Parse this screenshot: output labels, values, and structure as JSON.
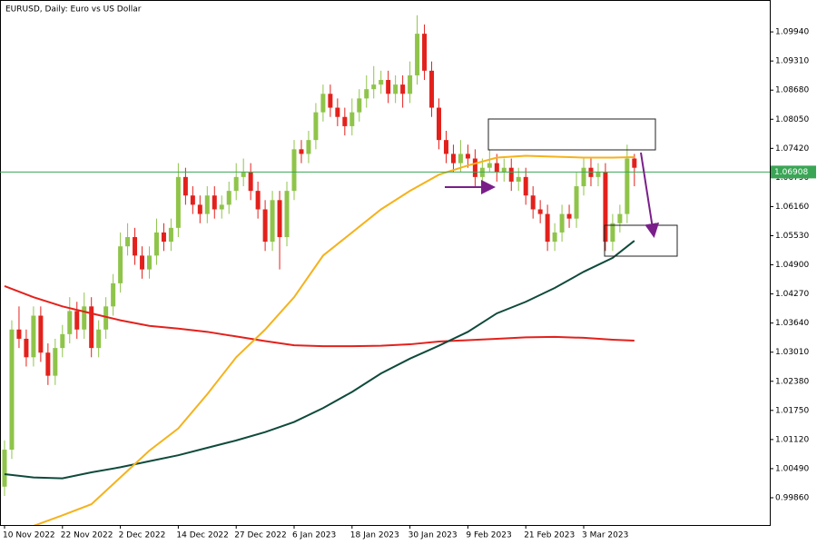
{
  "chart_data": {
    "type": "candlestick",
    "title": "EURUSD, Daily:  Euro vs US Dollar",
    "ylim": [
      0.9927,
      1.1063
    ],
    "xlim": [
      0,
      87
    ],
    "yticks": [
      {
        "value": 1.0994,
        "label": "1.09940"
      },
      {
        "value": 1.0931,
        "label": "1.09310"
      },
      {
        "value": 1.0868,
        "label": "1.08680"
      },
      {
        "value": 1.0805,
        "label": "1.08050"
      },
      {
        "value": 1.0742,
        "label": "1.07420"
      },
      {
        "value": 1.0679,
        "label": "1.06790"
      },
      {
        "value": 1.0616,
        "label": "1.06160"
      },
      {
        "value": 1.0553,
        "label": "1.05530"
      },
      {
        "value": 1.049,
        "label": "1.04900"
      },
      {
        "value": 1.0427,
        "label": "1.04270"
      },
      {
        "value": 1.0364,
        "label": "1.03640"
      },
      {
        "value": 1.0301,
        "label": "1.03010"
      },
      {
        "value": 1.0238,
        "label": "1.02380"
      },
      {
        "value": 1.0175,
        "label": "1.01750"
      },
      {
        "value": 1.0112,
        "label": "1.01120"
      },
      {
        "value": 1.0049,
        "label": "1.00490"
      },
      {
        "value": 0.9986,
        "label": "0.99860"
      }
    ],
    "xticks": [
      {
        "value": 0,
        "label": "10 Nov 2022"
      },
      {
        "value": 8,
        "label": "22 Nov 2022"
      },
      {
        "value": 16,
        "label": "2 Dec 2022"
      },
      {
        "value": 24,
        "label": "14 Dec 2022"
      },
      {
        "value": 32,
        "label": "27 Dec 2022"
      },
      {
        "value": 40,
        "label": "6 Jan 2023"
      },
      {
        "value": 48,
        "label": "18 Jan 2023"
      },
      {
        "value": 56,
        "label": "30 Jan 2023"
      },
      {
        "value": 64,
        "label": "9 Feb 2023"
      },
      {
        "value": 72,
        "label": "21 Feb 2023"
      },
      {
        "value": 80,
        "label": "3 Mar 2023"
      }
    ],
    "up_color": "#8fc44a",
    "down_color": "#e3211c",
    "current_price": {
      "value": 1.06908,
      "label": "1.06908",
      "color": "#3aa655"
    },
    "candles": [
      [
        1.001,
        1.011,
        0.999,
        1.009
      ],
      [
        1.009,
        1.037,
        1.007,
        1.035
      ],
      [
        1.035,
        1.04,
        1.031,
        1.033
      ],
      [
        1.033,
        1.035,
        1.027,
        1.029
      ],
      [
        1.029,
        1.04,
        1.027,
        1.038
      ],
      [
        1.038,
        1.04,
        1.028,
        1.03
      ],
      [
        1.03,
        1.032,
        1.023,
        1.025
      ],
      [
        1.025,
        1.033,
        1.023,
        1.031
      ],
      [
        1.031,
        1.036,
        1.029,
        1.034
      ],
      [
        1.034,
        1.042,
        1.032,
        1.039
      ],
      [
        1.039,
        1.041,
        1.033,
        1.035
      ],
      [
        1.035,
        1.043,
        1.033,
        1.04
      ],
      [
        1.04,
        1.042,
        1.029,
        1.031
      ],
      [
        1.031,
        1.037,
        1.029,
        1.035
      ],
      [
        1.035,
        1.042,
        1.033,
        1.04
      ],
      [
        1.04,
        1.047,
        1.038,
        1.045
      ],
      [
        1.045,
        1.056,
        1.043,
        1.053
      ],
      [
        1.053,
        1.058,
        1.051,
        1.055
      ],
      [
        1.055,
        1.057,
        1.049,
        1.051
      ],
      [
        1.051,
        1.053,
        1.046,
        1.048
      ],
      [
        1.048,
        1.053,
        1.046,
        1.051
      ],
      [
        1.051,
        1.059,
        1.049,
        1.056
      ],
      [
        1.056,
        1.058,
        1.052,
        1.054
      ],
      [
        1.054,
        1.059,
        1.052,
        1.057
      ],
      [
        1.057,
        1.071,
        1.055,
        1.068
      ],
      [
        1.068,
        1.07,
        1.062,
        1.064
      ],
      [
        1.064,
        1.066,
        1.06,
        1.062
      ],
      [
        1.062,
        1.064,
        1.058,
        1.06
      ],
      [
        1.06,
        1.066,
        1.058,
        1.064
      ],
      [
        1.064,
        1.066,
        1.059,
        1.061
      ],
      [
        1.061,
        1.064,
        1.059,
        1.062
      ],
      [
        1.062,
        1.067,
        1.06,
        1.065
      ],
      [
        1.065,
        1.071,
        1.063,
        1.068
      ],
      [
        1.068,
        1.072,
        1.066,
        1.069
      ],
      [
        1.069,
        1.071,
        1.063,
        1.065
      ],
      [
        1.065,
        1.067,
        1.059,
        1.061
      ],
      [
        1.061,
        1.063,
        1.052,
        1.054
      ],
      [
        1.054,
        1.065,
        1.052,
        1.063
      ],
      [
        1.063,
        1.065,
        1.048,
        1.055
      ],
      [
        1.055,
        1.067,
        1.053,
        1.065
      ],
      [
        1.065,
        1.076,
        1.063,
        1.074
      ],
      [
        1.074,
        1.076,
        1.071,
        1.073
      ],
      [
        1.073,
        1.078,
        1.071,
        1.076
      ],
      [
        1.076,
        1.084,
        1.074,
        1.082
      ],
      [
        1.082,
        1.088,
        1.08,
        1.086
      ],
      [
        1.086,
        1.088,
        1.081,
        1.083
      ],
      [
        1.083,
        1.085,
        1.079,
        1.081
      ],
      [
        1.081,
        1.083,
        1.077,
        1.079
      ],
      [
        1.079,
        1.085,
        1.077,
        1.082
      ],
      [
        1.082,
        1.087,
        1.08,
        1.085
      ],
      [
        1.085,
        1.09,
        1.083,
        1.087
      ],
      [
        1.087,
        1.092,
        1.085,
        1.088
      ],
      [
        1.088,
        1.091,
        1.086,
        1.089
      ],
      [
        1.089,
        1.091,
        1.084,
        1.086
      ],
      [
        1.086,
        1.09,
        1.084,
        1.088
      ],
      [
        1.088,
        1.09,
        1.083,
        1.086
      ],
      [
        1.086,
        1.093,
        1.084,
        1.09
      ],
      [
        1.09,
        1.103,
        1.088,
        1.099
      ],
      [
        1.099,
        1.101,
        1.089,
        1.091
      ],
      [
        1.091,
        1.093,
        1.081,
        1.083
      ],
      [
        1.083,
        1.085,
        1.074,
        1.076
      ],
      [
        1.076,
        1.078,
        1.071,
        1.073
      ],
      [
        1.073,
        1.075,
        1.069,
        1.071
      ],
      [
        1.071,
        1.076,
        1.069,
        1.073
      ],
      [
        1.073,
        1.075,
        1.07,
        1.072
      ],
      [
        1.072,
        1.074,
        1.066,
        1.068
      ],
      [
        1.068,
        1.072,
        1.066,
        1.07
      ],
      [
        1.07,
        1.074,
        1.069,
        1.071
      ],
      [
        1.071,
        1.073,
        1.067,
        1.069
      ],
      [
        1.069,
        1.072,
        1.067,
        1.07
      ],
      [
        1.07,
        1.072,
        1.065,
        1.067
      ],
      [
        1.067,
        1.07,
        1.065,
        1.068
      ],
      [
        1.068,
        1.07,
        1.062,
        1.064
      ],
      [
        1.064,
        1.066,
        1.059,
        1.061
      ],
      [
        1.061,
        1.063,
        1.058,
        1.06
      ],
      [
        1.06,
        1.062,
        1.052,
        1.054
      ],
      [
        1.054,
        1.058,
        1.052,
        1.056
      ],
      [
        1.056,
        1.062,
        1.054,
        1.06
      ],
      [
        1.06,
        1.062,
        1.057,
        1.059
      ],
      [
        1.059,
        1.069,
        1.057,
        1.066
      ],
      [
        1.066,
        1.072,
        1.064,
        1.07
      ],
      [
        1.07,
        1.072,
        1.066,
        1.068
      ],
      [
        1.068,
        1.071,
        1.066,
        1.069
      ],
      [
        1.069,
        1.071,
        1.052,
        1.054
      ],
      [
        1.054,
        1.06,
        1.052,
        1.058
      ],
      [
        1.058,
        1.062,
        1.056,
        1.06
      ],
      [
        1.06,
        1.075,
        1.058,
        1.072
      ],
      [
        1.072,
        1.073,
        1.066,
        1.07
      ]
    ],
    "lines": [
      {
        "color": "#e3211c",
        "x": [
          0,
          4,
          8,
          12,
          16,
          20,
          24,
          28,
          32,
          36,
          40,
          44,
          48,
          52,
          56,
          60,
          64,
          68,
          72,
          76,
          80,
          84,
          87
        ],
        "values": [
          1.0444,
          1.042,
          1.04,
          1.0385,
          1.037,
          1.0358,
          1.0352,
          1.0345,
          1.0335,
          1.0325,
          1.0316,
          1.0314,
          1.0314,
          1.0315,
          1.0318,
          1.0324,
          1.0327,
          1.033,
          1.0333,
          1.0334,
          1.0332,
          1.0328,
          1.0326
        ]
      },
      {
        "color": "#0f4a3c",
        "x": [
          0,
          4,
          8,
          12,
          16,
          20,
          24,
          28,
          32,
          36,
          40,
          44,
          48,
          52,
          56,
          60,
          64,
          68,
          72,
          76,
          80,
          84,
          87
        ],
        "values": [
          1.0037,
          1.003,
          1.0028,
          1.0041,
          1.0052,
          1.0065,
          1.0078,
          1.0094,
          1.011,
          1.0128,
          1.015,
          1.018,
          1.0215,
          1.0255,
          1.0287,
          1.0315,
          1.0345,
          1.0385,
          1.041,
          1.044,
          1.0475,
          1.0505,
          1.0542
        ]
      },
      {
        "color": "#f5b21b",
        "x": [
          0,
          4,
          8,
          12,
          16,
          20,
          24,
          28,
          32,
          36,
          40,
          44,
          48,
          52,
          56,
          60,
          64,
          68,
          72,
          76,
          80,
          84,
          87
        ],
        "values": [
          0.988,
          0.9925,
          0.9948,
          0.9972,
          1.003,
          1.0088,
          1.0136,
          1.021,
          1.029,
          1.035,
          1.042,
          1.051,
          1.056,
          1.061,
          1.065,
          1.0685,
          1.0705,
          1.0722,
          1.0726,
          1.0724,
          1.0722,
          1.0722,
          1.0723
        ]
      }
    ]
  }
}
